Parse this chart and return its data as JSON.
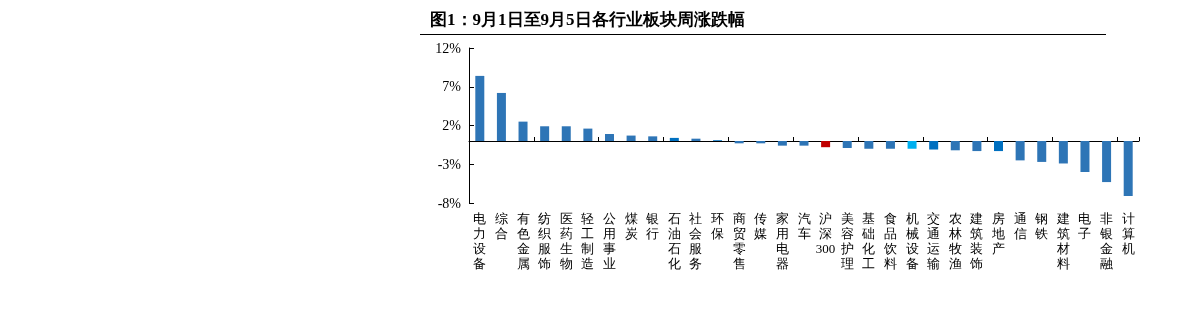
{
  "chart_data": {
    "type": "bar",
    "title": "图1：9月1日至9月5日各行业板块周涨跌幅",
    "categories": [
      "电力设备",
      "综合",
      "有色金属",
      "纺织服饰",
      "医药生物",
      "轻工制造",
      "公用事业",
      "煤炭",
      "银行",
      "石油石化",
      "社会服务",
      "环保",
      "商贸零售",
      "传媒",
      "家用电器",
      "汽车",
      "沪深300",
      "美容护理",
      "基础化工",
      "食品饮料",
      "机械设备",
      "交通运输",
      "农林牧渔",
      "建筑装饰",
      "房地产",
      "通信",
      "钢铁",
      "建筑材料",
      "电子",
      "非银金融",
      "计算机"
    ],
    "values": [
      8.4,
      6.2,
      2.5,
      1.9,
      1.9,
      1.6,
      0.9,
      0.7,
      0.6,
      0.4,
      0.3,
      0.1,
      -0.3,
      -0.3,
      -0.6,
      -0.6,
      -0.8,
      -0.9,
      -1.0,
      -1.0,
      -1.0,
      -1.1,
      -1.2,
      -1.3,
      -1.3,
      -2.5,
      -2.7,
      -2.9,
      -4.0,
      -5.3,
      -7.1
    ],
    "colors": [
      "#2e75b6",
      "#2e75b6",
      "#2e75b6",
      "#2e75b6",
      "#2e75b6",
      "#2e75b6",
      "#2e75b6",
      "#2e75b6",
      "#2e75b6",
      "#0070c0",
      "#2e75b6",
      "#0070c0",
      "#2e75b6",
      "#2e75b6",
      "#2e75b6",
      "#2e75b6",
      "#c00000",
      "#2e75b6",
      "#2e75b6",
      "#2e75b6",
      "#00b0f0",
      "#0070c0",
      "#2e75b6",
      "#2e75b6",
      "#0070c0",
      "#2e75b6",
      "#2e75b6",
      "#2e75b6",
      "#2e75b6",
      "#2e75b6",
      "#2e75b6"
    ],
    "ylim": [
      -8,
      12
    ],
    "yticks": [
      {
        "value": -8,
        "label": "-8%"
      },
      {
        "value": -3,
        "label": "-3%"
      },
      {
        "value": 2,
        "label": "2%"
      },
      {
        "value": 7,
        "label": "7%"
      },
      {
        "value": 12,
        "label": "12%"
      }
    ],
    "grid": false
  }
}
